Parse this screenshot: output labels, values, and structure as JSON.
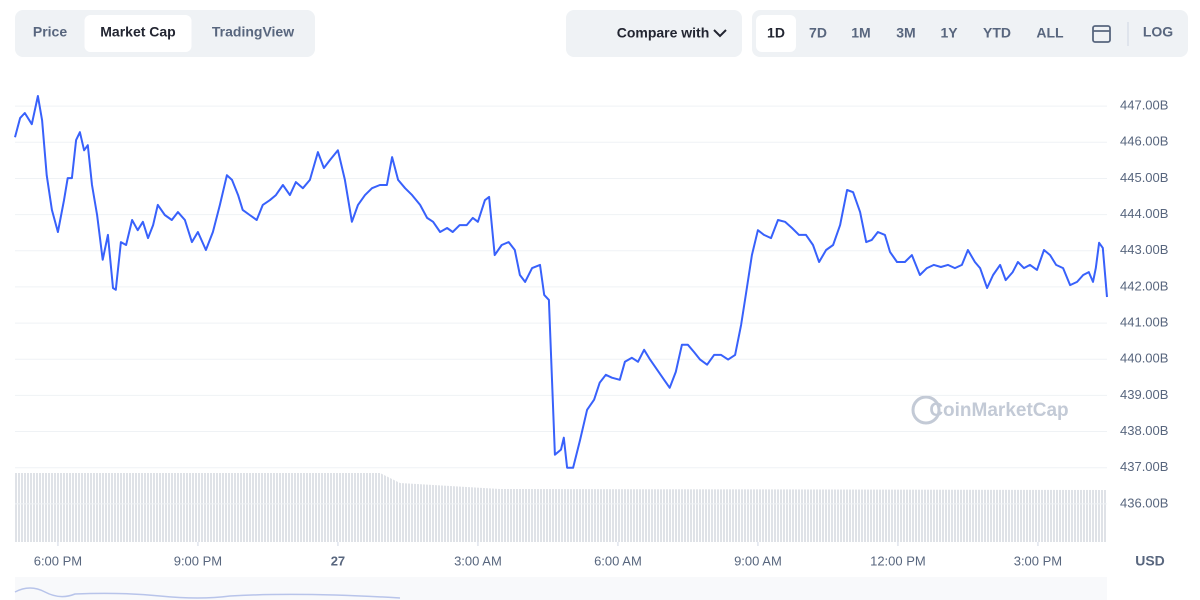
{
  "toolbar": {
    "views": [
      "Price",
      "Market Cap",
      "TradingView"
    ],
    "selected_view": "Market Cap",
    "compare": "Compare with",
    "ranges": [
      "1D",
      "7D",
      "1M",
      "3M",
      "1Y",
      "YTD",
      "ALL"
    ],
    "selected_range": "1D",
    "log": "LOG"
  },
  "watermark": "CoinMarketCap",
  "currency": "USD",
  "chart_data": {
    "type": "line",
    "color": "#3861fb",
    "grid": true,
    "xlim": [
      17.08,
      40.48
    ],
    "xticks": [
      {
        "value": 18,
        "label": "6:00 PM"
      },
      {
        "value": 21,
        "label": "9:00 PM"
      },
      {
        "value": 24,
        "label": "27"
      },
      {
        "value": 27,
        "label": "3:00 AM"
      },
      {
        "value": 30,
        "label": "6:00 AM"
      },
      {
        "value": 33,
        "label": "9:00 AM"
      },
      {
        "value": 36,
        "label": "12:00 PM"
      },
      {
        "value": 39,
        "label": "3:00 PM"
      }
    ],
    "ylim": [
      435,
      448
    ],
    "yticks": [
      {
        "value": 436,
        "label": "436.00B"
      },
      {
        "value": 437,
        "label": "437.00B"
      },
      {
        "value": 438,
        "label": "438.00B"
      },
      {
        "value": 439,
        "label": "439.00B"
      },
      {
        "value": 440,
        "label": "440.00B"
      },
      {
        "value": 441,
        "label": "441.00B"
      },
      {
        "value": 442,
        "label": "442.00B"
      },
      {
        "value": 443,
        "label": "443.00B"
      },
      {
        "value": 444,
        "label": "444.00B"
      },
      {
        "value": 445,
        "label": "445.00B"
      },
      {
        "value": 446,
        "label": "446.00B"
      },
      {
        "value": 447,
        "label": "447.00B"
      }
    ],
    "x": [
      17.08,
      17.19,
      17.29,
      17.44,
      17.57,
      17.66,
      17.76,
      17.87,
      18.0,
      18.13,
      18.21,
      18.3,
      18.39,
      18.47,
      18.56,
      18.64,
      18.73,
      18.84,
      18.96,
      19.07,
      19.18,
      19.24,
      19.35,
      19.46,
      19.59,
      19.71,
      19.82,
      19.93,
      20.04,
      20.14,
      20.29,
      20.44,
      20.57,
      20.72,
      20.87,
      21.0,
      21.17,
      21.32,
      21.47,
      21.62,
      21.73,
      21.86,
      21.96,
      22.11,
      22.26,
      22.39,
      22.54,
      22.67,
      22.82,
      22.97,
      23.1,
      23.25,
      23.4,
      23.57,
      23.7,
      23.83,
      24.0,
      24.15,
      24.3,
      24.43,
      24.58,
      24.73,
      24.9,
      25.05,
      25.16,
      25.29,
      25.44,
      25.59,
      25.76,
      25.91,
      26.04,
      26.19,
      26.34,
      26.46,
      26.61,
      26.76,
      26.89,
      27.0,
      27.15,
      27.24,
      27.36,
      27.51,
      27.66,
      27.79,
      27.9,
      28.01,
      28.16,
      28.33,
      28.42,
      28.52,
      28.65,
      28.78,
      28.84,
      28.91,
      29.04,
      29.19,
      29.34,
      29.49,
      29.61,
      29.74,
      29.87,
      30.04,
      30.15,
      30.3,
      30.43,
      30.56,
      30.69,
      30.84,
      30.99,
      31.11,
      31.24,
      31.37,
      31.5,
      31.63,
      31.76,
      31.91,
      32.06,
      32.21,
      32.36,
      32.51,
      32.64,
      32.74,
      32.87,
      33.0,
      33.13,
      33.28,
      33.43,
      33.58,
      33.73,
      33.88,
      34.03,
      34.18,
      34.31,
      34.46,
      34.61,
      34.76,
      34.91,
      35.04,
      35.19,
      35.32,
      35.44,
      35.57,
      35.72,
      35.83,
      35.98,
      36.15,
      36.3,
      36.47,
      36.62,
      36.77,
      36.92,
      37.07,
      37.22,
      37.37,
      37.5,
      37.65,
      37.76,
      37.91,
      38.04,
      38.19,
      38.31,
      38.46,
      38.57,
      38.7,
      38.83,
      38.98,
      39.13,
      39.26,
      39.39,
      39.54,
      39.69,
      39.84,
      39.97,
      40.09,
      40.18,
      40.24,
      40.31,
      40.39,
      40.48
    ],
    "values": [
      446.14,
      446.67,
      446.81,
      446.5,
      447.28,
      446.61,
      445.09,
      444.13,
      443.52,
      444.4,
      445.01,
      445.01,
      446.06,
      446.28,
      445.78,
      445.92,
      444.82,
      443.99,
      442.75,
      443.44,
      441.97,
      441.92,
      443.24,
      443.16,
      443.85,
      443.57,
      443.8,
      443.35,
      443.71,
      444.27,
      443.99,
      443.85,
      444.07,
      443.85,
      443.24,
      443.52,
      443.02,
      443.52,
      444.27,
      445.09,
      444.96,
      444.54,
      444.13,
      443.99,
      443.85,
      444.27,
      444.4,
      444.54,
      444.82,
      444.54,
      444.9,
      444.73,
      444.96,
      445.73,
      445.29,
      445.51,
      445.78,
      444.96,
      443.8,
      444.27,
      444.54,
      444.73,
      444.82,
      444.82,
      445.59,
      444.96,
      444.73,
      444.54,
      444.27,
      443.91,
      443.8,
      443.52,
      443.63,
      443.52,
      443.71,
      443.71,
      443.91,
      443.8,
      444.4,
      444.49,
      442.88,
      443.16,
      443.24,
      443.02,
      442.33,
      442.14,
      442.52,
      442.61,
      441.78,
      441.64,
      437.36,
      437.5,
      437.83,
      437.0,
      437.0,
      437.77,
      438.6,
      438.88,
      439.35,
      439.57,
      439.49,
      439.43,
      439.93,
      440.04,
      439.93,
      440.26,
      439.99,
      439.71,
      439.43,
      439.21,
      439.65,
      440.4,
      440.4,
      440.2,
      439.99,
      439.85,
      440.12,
      440.12,
      439.99,
      440.12,
      440.95,
      441.78,
      442.88,
      443.57,
      443.44,
      443.35,
      443.85,
      443.8,
      443.63,
      443.44,
      443.44,
      443.16,
      442.69,
      443.02,
      443.16,
      443.71,
      444.68,
      444.62,
      444.07,
      443.24,
      443.3,
      443.52,
      443.44,
      442.97,
      442.69,
      442.69,
      442.88,
      442.33,
      442.52,
      442.61,
      442.55,
      442.61,
      442.52,
      442.61,
      443.02,
      442.69,
      442.52,
      441.97,
      442.33,
      442.61,
      442.19,
      442.41,
      442.69,
      442.52,
      442.61,
      442.47,
      443.02,
      442.88,
      442.61,
      442.52,
      442.05,
      442.14,
      442.33,
      442.41,
      442.14,
      442.52,
      443.22,
      443.08,
      441.72
    ]
  }
}
